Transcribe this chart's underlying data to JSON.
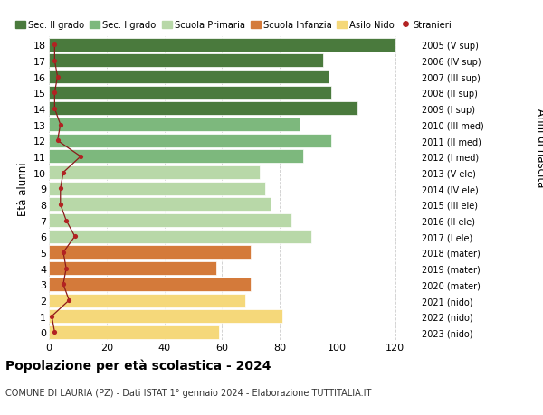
{
  "ages": [
    18,
    17,
    16,
    15,
    14,
    13,
    12,
    11,
    10,
    9,
    8,
    7,
    6,
    5,
    4,
    3,
    2,
    1,
    0
  ],
  "right_labels": [
    "2005 (V sup)",
    "2006 (IV sup)",
    "2007 (III sup)",
    "2008 (II sup)",
    "2009 (I sup)",
    "2010 (III med)",
    "2011 (II med)",
    "2012 (I med)",
    "2013 (V ele)",
    "2014 (IV ele)",
    "2015 (III ele)",
    "2016 (II ele)",
    "2017 (I ele)",
    "2018 (mater)",
    "2019 (mater)",
    "2020 (mater)",
    "2021 (nido)",
    "2022 (nido)",
    "2023 (nido)"
  ],
  "bar_values": [
    120,
    95,
    97,
    98,
    107,
    87,
    98,
    88,
    73,
    75,
    77,
    84,
    91,
    70,
    58,
    70,
    68,
    81,
    59
  ],
  "bar_colors": [
    "#4a7a3d",
    "#4a7a3d",
    "#4a7a3d",
    "#4a7a3d",
    "#4a7a3d",
    "#7db87d",
    "#7db87d",
    "#7db87d",
    "#b8d8a8",
    "#b8d8a8",
    "#b8d8a8",
    "#b8d8a8",
    "#b8d8a8",
    "#d47a3a",
    "#d47a3a",
    "#d47a3a",
    "#f5d87a",
    "#f5d87a",
    "#f5d87a"
  ],
  "stranieri_values": [
    2,
    2,
    3,
    2,
    2,
    4,
    3,
    11,
    5,
    4,
    4,
    6,
    9,
    5,
    6,
    5,
    7,
    1,
    2
  ],
  "legend_labels": [
    "Sec. II grado",
    "Sec. I grado",
    "Scuola Primaria",
    "Scuola Infanzia",
    "Asilo Nido",
    "Stranieri"
  ],
  "legend_colors": [
    "#4a7a3d",
    "#7db87d",
    "#b8d8a8",
    "#d47a3a",
    "#f5d87a",
    "#b22222"
  ],
  "title": "Popolazione per età scolastica - 2024",
  "subtitle": "COMUNE DI LAURIA (PZ) - Dati ISTAT 1° gennaio 2024 - Elaborazione TUTTITALIA.IT",
  "ylabel_left": "Età alunni",
  "ylabel_right": "Anni di nascita",
  "xticks": [
    0,
    20,
    40,
    60,
    80,
    100,
    120
  ],
  "background_color": "#ffffff",
  "bar_edge_color": "#ffffff",
  "stranieri_line_color": "#8b1a1a",
  "stranieri_dot_color": "#b22222",
  "grid_color": "#cccccc"
}
